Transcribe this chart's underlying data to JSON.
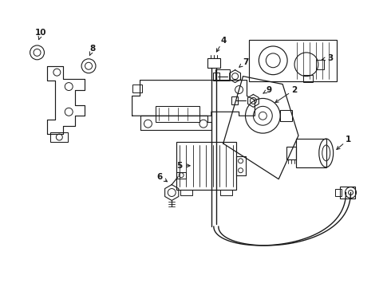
{
  "background_color": "#ffffff",
  "line_color": "#1a1a1a",
  "figsize": [
    4.9,
    3.6
  ],
  "dpi": 100,
  "lw": 0.9
}
